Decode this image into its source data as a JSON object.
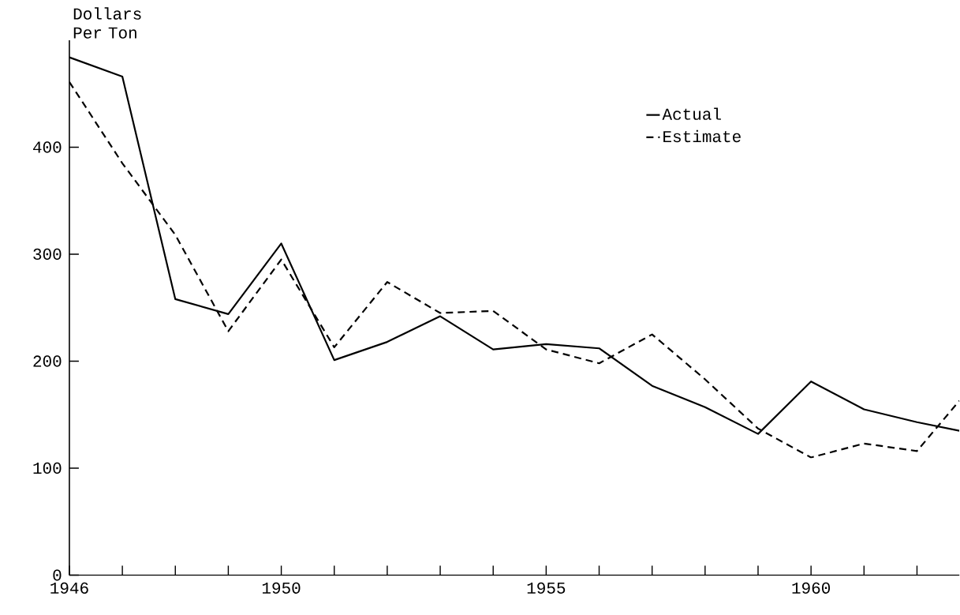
{
  "chart_data": {
    "type": "line",
    "ylabel": "Dollars Per Ton",
    "x": [
      1946,
      1947,
      1948,
      1949,
      1950,
      1951,
      1952,
      1953,
      1954,
      1955,
      1956,
      1957,
      1958,
      1959,
      1960,
      1961,
      1962,
      1962.8
    ],
    "series": [
      {
        "name": "Actual",
        "color": "#000000",
        "line_style": "solid",
        "values": [
          484,
          466,
          258,
          244,
          310,
          201,
          218,
          242,
          211,
          216,
          212,
          177,
          157,
          132,
          181,
          155,
          143,
          135
        ]
      },
      {
        "name": "Estimate",
        "color": "#000000",
        "line_style": "dashed",
        "values": [
          461,
          385,
          318,
          228,
          295,
          213,
          274,
          245,
          247,
          211,
          198,
          225,
          183,
          137,
          110,
          123,
          116,
          163
        ]
      }
    ],
    "xlim": [
      1946,
      1962.8
    ],
    "ylim": [
      0,
      500
    ],
    "xticks": [
      1946,
      {
        "value": 1947,
        "label": null
      },
      {
        "value": 1948,
        "label": null
      },
      {
        "value": 1949,
        "label": null
      },
      1950,
      {
        "value": 1951,
        "label": null
      },
      {
        "value": 1952,
        "label": null
      },
      {
        "value": 1953,
        "label": null
      },
      {
        "value": 1954,
        "label": null
      },
      1955,
      {
        "value": 1956,
        "label": null
      },
      {
        "value": 1957,
        "label": null
      },
      {
        "value": 1958,
        "label": null
      },
      {
        "value": 1959,
        "label": null
      },
      1960,
      {
        "value": 1961,
        "label": null
      },
      {
        "value": 1962,
        "label": null
      }
    ],
    "yticks": [
      0,
      100,
      200,
      300,
      400
    ],
    "legend": "top right",
    "grid": false,
    "marker": "none"
  }
}
